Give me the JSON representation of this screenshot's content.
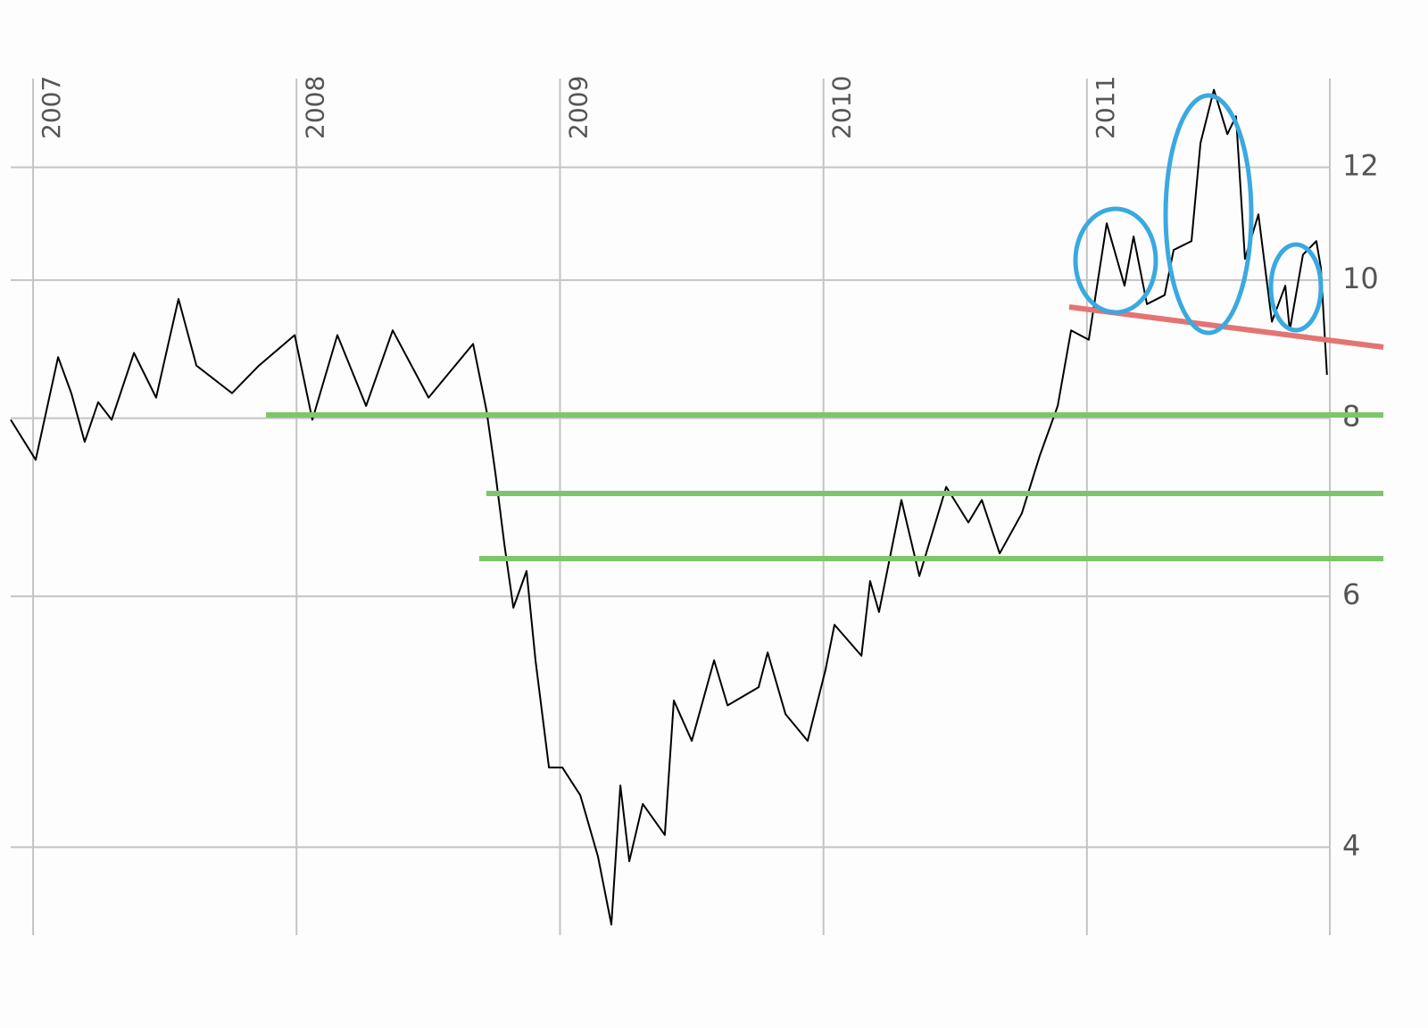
{
  "chart_data": {
    "type": "line",
    "log_y": true,
    "grid": true,
    "color": "#000000",
    "xlim": [
      2006.915,
      2011.922
    ],
    "xticks": [
      2007,
      2008,
      2009,
      2010,
      2011
    ],
    "ylim": [
      3.47,
      13.85
    ],
    "yticks": [
      4,
      6,
      8,
      10,
      12
    ],
    "x": [
      2006.915,
      2007.01,
      2007.095,
      2007.145,
      2007.196,
      2007.247,
      2007.298,
      2007.383,
      2007.467,
      2007.552,
      2007.62,
      2007.755,
      2007.857,
      2007.993,
      2008.06,
      2008.155,
      2008.264,
      2008.365,
      2008.501,
      2008.67,
      2008.721,
      2008.755,
      2008.789,
      2008.823,
      2008.873,
      2008.907,
      2008.958,
      2009.009,
      2009.077,
      2009.144,
      2009.195,
      2009.229,
      2009.263,
      2009.314,
      2009.398,
      2009.432,
      2009.5,
      2009.585,
      2009.636,
      2009.754,
      2009.788,
      2009.856,
      2009.94,
      2010.008,
      2010.042,
      2010.144,
      2010.177,
      2010.211,
      2010.296,
      2010.364,
      2010.466,
      2010.55,
      2010.601,
      2010.669,
      2010.753,
      2010.821,
      2010.889,
      2010.94,
      2011.007,
      2011.075,
      2011.143,
      2011.177,
      2011.228,
      2011.295,
      2011.329,
      2011.397,
      2011.431,
      2011.482,
      2011.533,
      2011.566,
      2011.6,
      2011.651,
      2011.702,
      2011.753,
      2011.77,
      2011.82,
      2011.871,
      2011.888,
      2011.911
    ],
    "values": [
      7.98,
      7.48,
      8.83,
      8.33,
      7.7,
      8.21,
      7.98,
      8.89,
      8.27,
      9.7,
      8.71,
      8.33,
      8.71,
      9.15,
      7.98,
      9.15,
      8.16,
      9.22,
      8.27,
      9.02,
      8.1,
      7.32,
      6.52,
      5.89,
      6.25,
      5.41,
      4.55,
      4.55,
      4.35,
      3.94,
      3.53,
      4.42,
      3.91,
      4.29,
      4.08,
      5.07,
      4.75,
      5.41,
      5.03,
      5.18,
      5.48,
      4.96,
      4.75,
      5.33,
      5.73,
      5.45,
      6.15,
      5.85,
      7.01,
      6.2,
      7.16,
      6.76,
      7.01,
      6.43,
      6.86,
      7.53,
      8.16,
      9.22,
      9.08,
      10.96,
      9.91,
      10.73,
      9.62,
      9.76,
      10.5,
      10.65,
      12.48,
      13.6,
      12.66,
      13.03,
      10.35,
      11.12,
      9.35,
      9.91,
      9.22,
      10.42,
      10.65,
      10.2,
      8.58
    ]
  }
}
